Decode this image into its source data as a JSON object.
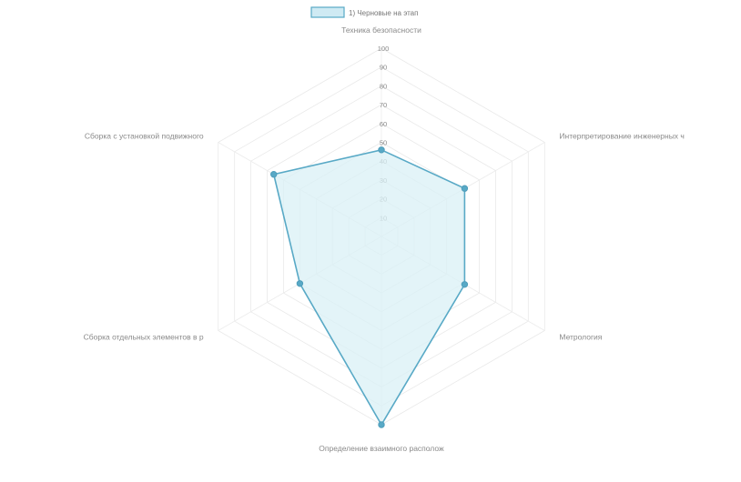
{
  "chart_data": {
    "type": "radar",
    "legend_position": "top",
    "axes": [
      "Техника безопасности",
      "Интерпретирование инженерных ч",
      "Метрология",
      "Определение взаимного располож",
      "Сборка отдельных элементов в р",
      "Сборка с установкой подвижного"
    ],
    "scale": {
      "min": 0,
      "max": 100,
      "step": 10,
      "ticks": [
        "10",
        "20",
        "30",
        "40",
        "50",
        "60",
        "70",
        "80",
        "90",
        "100"
      ]
    },
    "series": [
      {
        "name": "1) Черновые на этап",
        "values": [
          46,
          51,
          51,
          100,
          50,
          66
        ]
      }
    ],
    "colors": {
      "stroke": "#58a9c6",
      "fill": "#d9f0f6",
      "point": "#58a9c6"
    }
  }
}
